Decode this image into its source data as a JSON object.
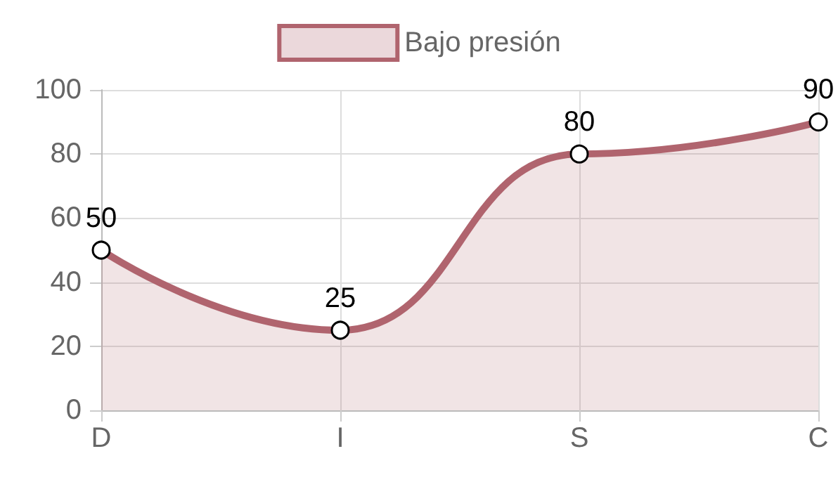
{
  "chart_data": {
    "type": "area",
    "categories": [
      "D",
      "I",
      "S",
      "C"
    ],
    "series": [
      {
        "name": "Bajo presión",
        "color": "#b0646e",
        "values": [
          50,
          25,
          80,
          90
        ]
      }
    ],
    "ylim": [
      0,
      100
    ],
    "yticks": [
      0,
      20,
      40,
      60,
      80,
      100
    ],
    "grid": true,
    "legend": "top",
    "marker": "circle",
    "data_labels": true
  }
}
